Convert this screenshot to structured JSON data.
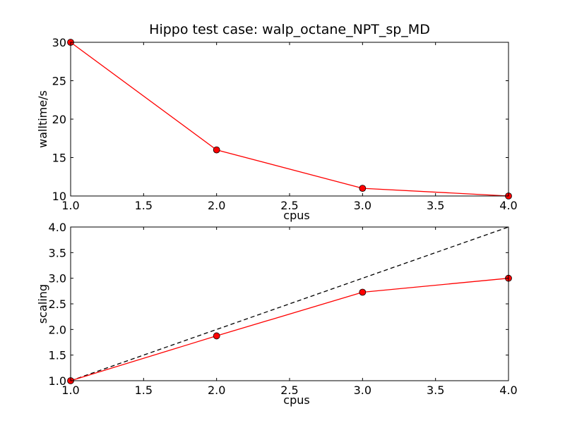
{
  "title": "Hippo test case: walp_octane_NPT_sp_MD",
  "chart_data": [
    {
      "type": "line",
      "xlabel": "cpus",
      "ylabel": "walltime/s",
      "xlim": [
        1.0,
        4.0
      ],
      "ylim": [
        10,
        30
      ],
      "xticks": [
        "1.0",
        "1.5",
        "2.0",
        "2.5",
        "3.0",
        "3.5",
        "4.0"
      ],
      "yticks": [
        "10",
        "15",
        "20",
        "25",
        "30"
      ],
      "grid": false,
      "series": [
        {
          "color": "#ff0000",
          "marker": "circle",
          "x": [
            1,
            2,
            3,
            4
          ],
          "y": [
            30,
            16,
            11,
            10
          ]
        }
      ]
    },
    {
      "type": "line",
      "xlabel": "cpus",
      "ylabel": "scaling",
      "xlim": [
        1.0,
        4.0
      ],
      "ylim": [
        1.0,
        4.0
      ],
      "xticks": [
        "1.0",
        "1.5",
        "2.0",
        "2.5",
        "3.0",
        "3.5",
        "4.0"
      ],
      "yticks": [
        "1.0",
        "1.5",
        "2.0",
        "2.5",
        "3.0",
        "3.5",
        "4.0"
      ],
      "grid": false,
      "series": [
        {
          "color": "#000000",
          "dashed": true,
          "marker": "none",
          "x": [
            1,
            4
          ],
          "y": [
            1,
            4
          ]
        },
        {
          "color": "#ff0000",
          "marker": "circle",
          "x": [
            1,
            2,
            3,
            4
          ],
          "y": [
            1.0,
            1.875,
            2.727,
            3.0
          ]
        }
      ]
    }
  ]
}
